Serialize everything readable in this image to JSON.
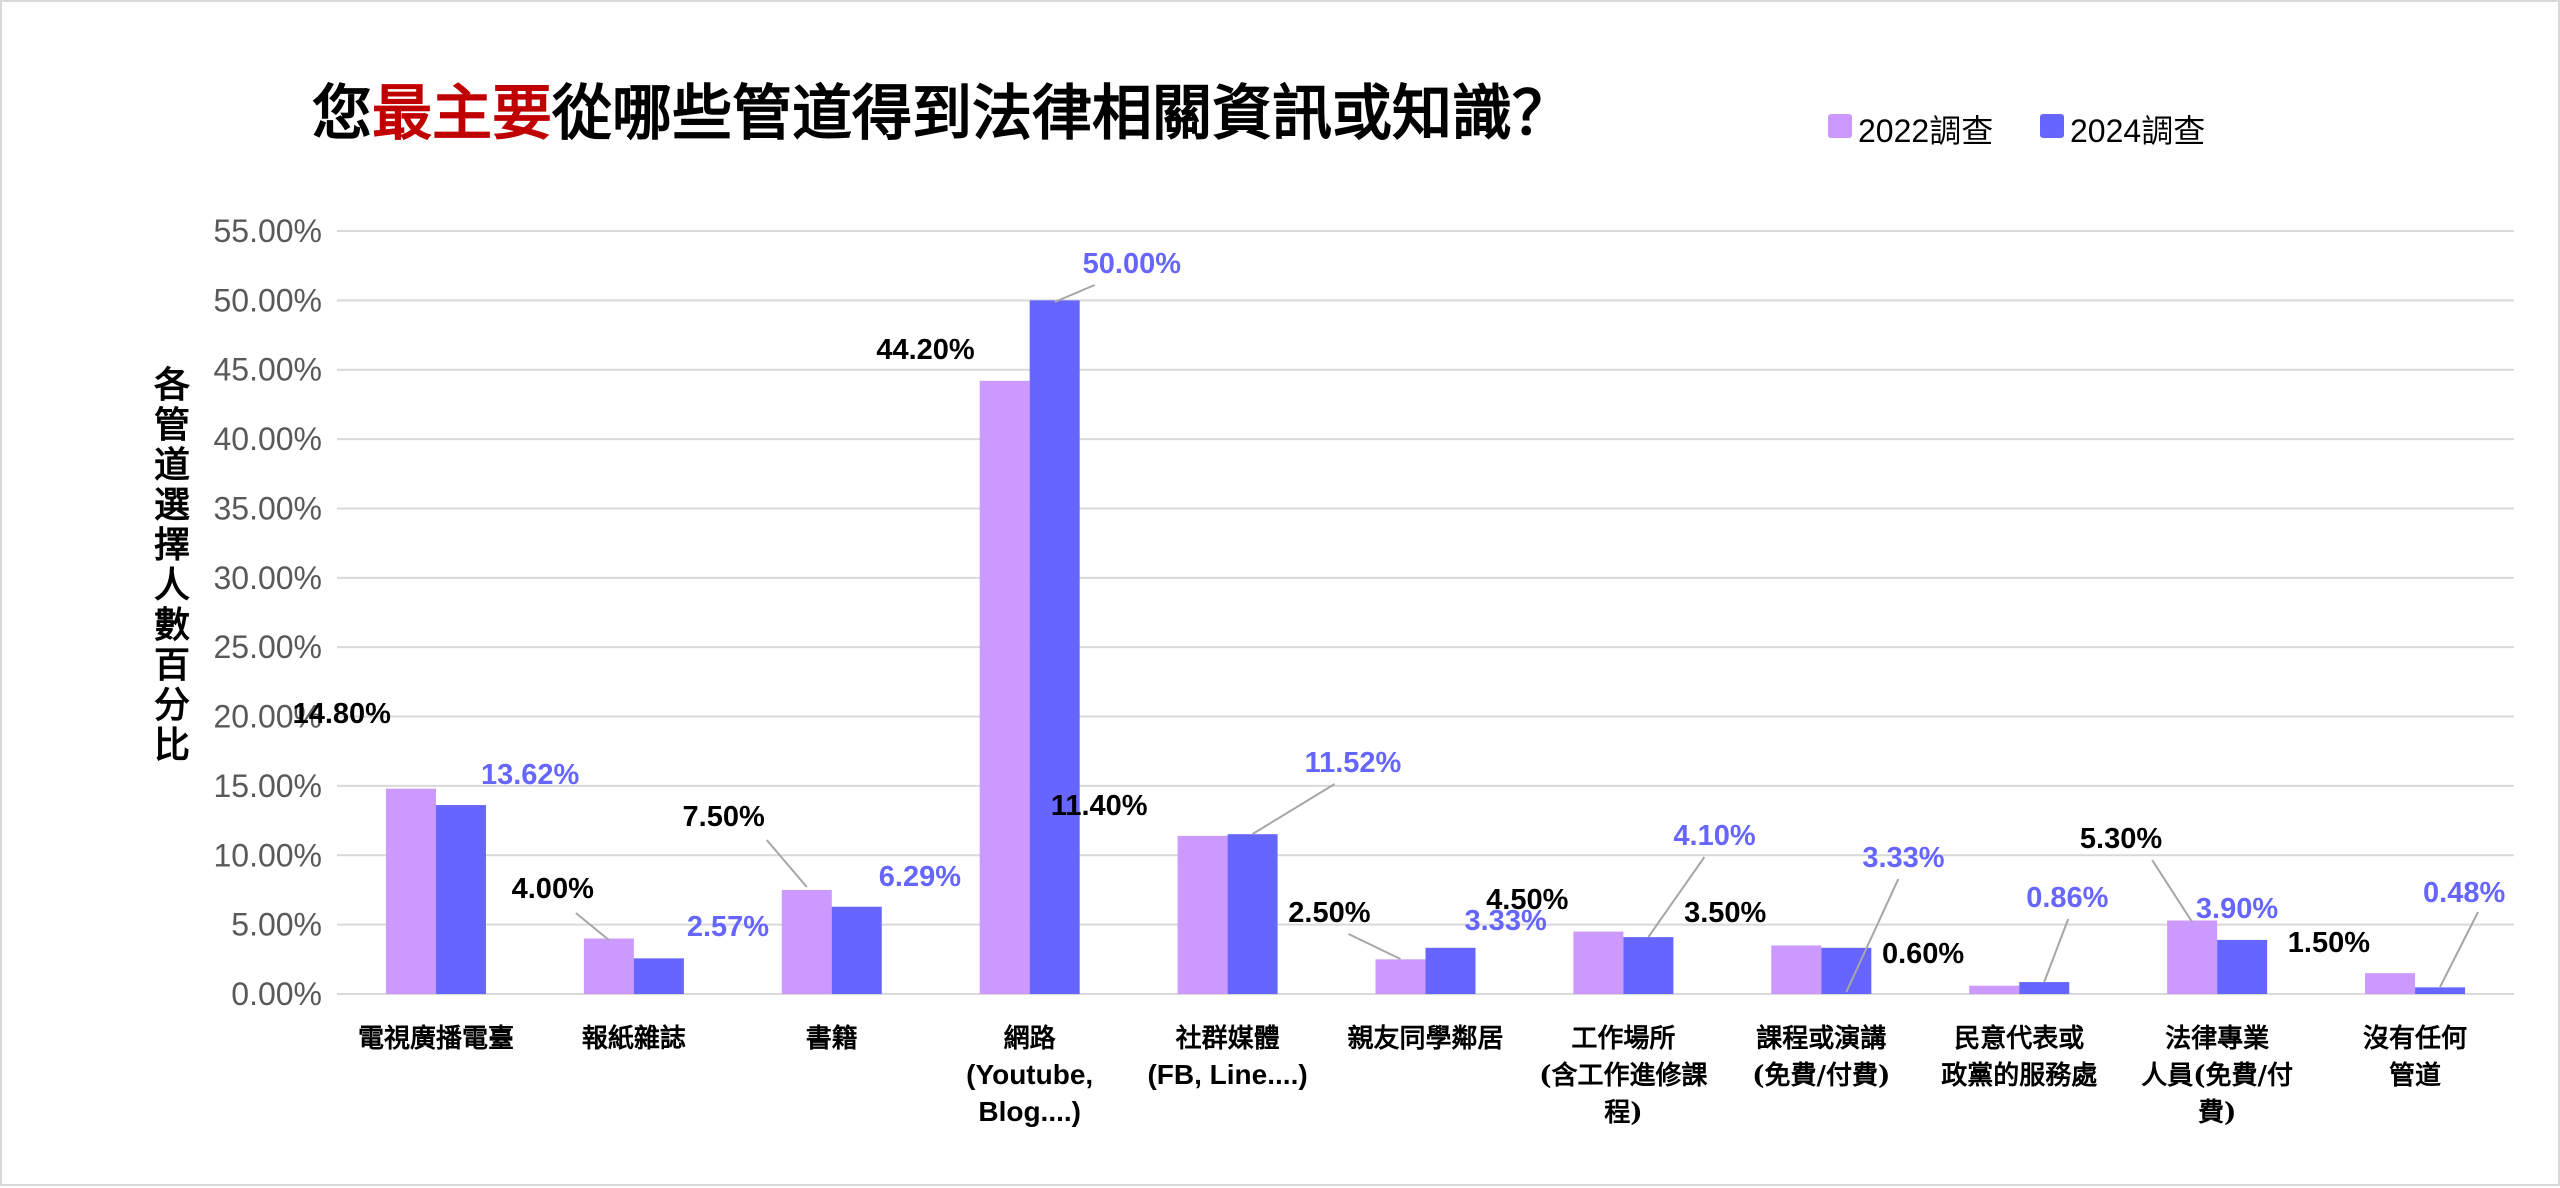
{
  "chart_data": {
    "type": "bar",
    "title": {
      "before": "您",
      "highlight": "最主要",
      "after": "從哪些管道得到法律相關資訊或知識？"
    },
    "ylabel": "各管道選擇人數百分比",
    "xlabel": "",
    "ylim": [
      0,
      55
    ],
    "ytick_step": 5,
    "ytick_labels": [
      "0.00%",
      "5.00%",
      "10.00%",
      "15.00%",
      "20.00%",
      "25.00%",
      "30.00%",
      "35.00%",
      "40.00%",
      "45.00%",
      "50.00%",
      "55.00%"
    ],
    "grid": true,
    "legend_position": "top-right",
    "categories": [
      [
        "電視廣播電臺"
      ],
      [
        "報紙雜誌"
      ],
      [
        "書籍"
      ],
      [
        "網路",
        "(Youtube,",
        "Blog....)"
      ],
      [
        "社群媒體",
        "(FB, Line....)"
      ],
      [
        "親友同學鄰居"
      ],
      [
        "工作場所",
        "(含工作進修課",
        "程)"
      ],
      [
        "課程或演講",
        "(免費/付費)"
      ],
      [
        "民意代表或",
        "政黨的服務處"
      ],
      [
        "法律專業",
        "人員(免費/付",
        "費)"
      ],
      [
        "沒有任何",
        "管道"
      ]
    ],
    "series": [
      {
        "name": "2022調查",
        "color": "#cc99ff",
        "label_color": "#000000",
        "values": [
          14.8,
          4.0,
          7.5,
          44.2,
          11.4,
          2.5,
          4.5,
          3.5,
          0.6,
          5.3,
          1.5
        ],
        "labels": [
          "14.80%",
          "4.00%",
          "7.50%",
          "44.20%",
          "11.40%",
          "2.50%",
          "4.50%",
          "3.50%",
          "0.60%",
          "5.30%",
          "1.50%"
        ]
      },
      {
        "name": "2024調查",
        "color": "#6666ff",
        "label_color": "#6666ff",
        "values": [
          13.62,
          2.57,
          6.29,
          50.0,
          11.52,
          3.33,
          4.1,
          3.33,
          0.86,
          3.9,
          0.48
        ],
        "labels": [
          "13.62%",
          "2.57%",
          "6.29%",
          "50.00%",
          "11.52%",
          "3.33%",
          "4.10%",
          "3.33%",
          "0.86%",
          "3.90%",
          "0.48%"
        ]
      }
    ]
  }
}
